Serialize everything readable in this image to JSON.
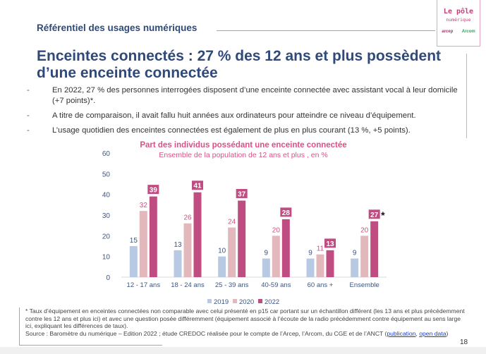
{
  "header": {
    "section": "Référentiel des usages numériques",
    "logo": {
      "line1": "Le pôle",
      "line2": "numérique",
      "brands": [
        "arcep",
        "Arcom"
      ]
    }
  },
  "title": "Enceintes connectés : 27 % des 12 ans et plus possèdent d’une enceinte connectée",
  "bullets": [
    "En 2022, 27 % des personnes interrogées disposent d’une enceinte connectée avec assistant vocal à leur domicile (+7 points)*.",
    "A titre de comparaison, il avait fallu huit années aux ordinateurs pour atteindre ce niveau d’équipement.",
    "L’usage quotidien des enceintes connectées est également de plus en plus courant (13 %, +5 points)."
  ],
  "chart_data": {
    "type": "bar",
    "title": "Part des individus possédant une enceinte connectée",
    "subtitle": "Ensemble de la population de 12 ans et plus , en %",
    "categories": [
      "12 - 17 ans",
      "18 - 24 ans",
      "25 - 39 ans",
      "40-59 ans",
      "60 ans +",
      "Ensemble"
    ],
    "series": [
      {
        "name": "2019",
        "values": [
          15,
          13,
          10,
          9,
          9,
          9
        ],
        "color": "#b8c9e3"
      },
      {
        "name": "2020",
        "values": [
          32,
          26,
          24,
          20,
          11,
          20
        ],
        "color": "#e3b8bd"
      },
      {
        "name": "2022",
        "values": [
          39,
          41,
          37,
          28,
          13,
          27
        ],
        "color": "#bf4d82"
      }
    ],
    "ylim": [
      0,
      60
    ],
    "yticks": [
      0,
      10,
      20,
      30,
      40,
      50,
      60
    ],
    "annotation": "*",
    "legend": "bottom",
    "grid": false
  },
  "footnote": {
    "text": "* Taux d’équipement en enceintes connectées non comparable avec celui présenté en p15 car portant sur un échantillon différent (les 13 ans et plus précédemment contre les 12 ans et plus ici) et avec une question posée différemment (équipement associé à l’écoute de la radio précédemment contre équipement au sens large ici, expliquant les différences de taux).",
    "source": "Source : Baromètre du numérique – Edition 2022 ; étude CREDOC réalisée pour le compte de l’Arcep, l’Arcom, du CGE et  de l’ANCT (",
    "link1": "publication",
    "sep": ", ",
    "link2": "open data",
    "end": ")"
  },
  "page_number": "18"
}
